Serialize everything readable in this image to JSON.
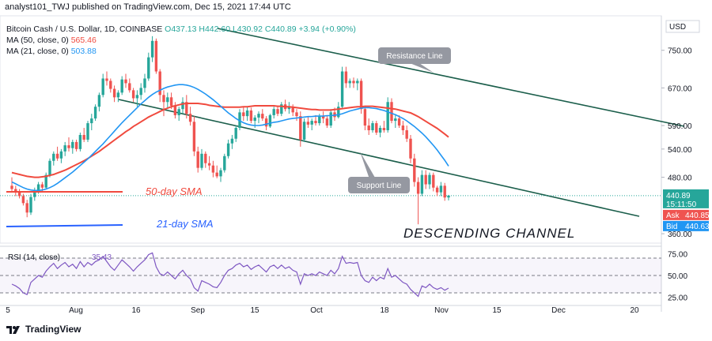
{
  "header": {
    "text": "analyst101_TWJ published on TradingView.com, Dec 15, 2021 17:44 UTC"
  },
  "legend": {
    "symbol": "Bitcoin Cash / U.S. Dollar, 1D, COINBASE",
    "ohlc": "O437.13  H442.60  L430.92  C440.89  +3.94 (+0.90%)",
    "ma50_label": "MA (50, close, 0)",
    "ma50_value": "565.46",
    "ma21_label": "MA (21, close, 0)",
    "ma21_value": "503.88"
  },
  "colors": {
    "up": "#26a69a",
    "down": "#ef5350",
    "ma50": "#f04a3e",
    "ma21": "#2196f3",
    "channel": "#1b5e4b",
    "rsi": "#7e57c2",
    "ask": "#ef5350",
    "bid": "#2196f3"
  },
  "price_axis": {
    "currency": "USD",
    "ticks": [
      "750.00",
      "670.00",
      "590.00",
      "540.00",
      "480.00",
      "360.00"
    ],
    "last": "440.89",
    "countdown": "15:11:50",
    "ask_label": "Ask",
    "ask_value": "440.85",
    "bid_label": "Bid",
    "bid_value": "440.63"
  },
  "rsi": {
    "label": "RSI (14, close)",
    "value": "35.43",
    "ticks": [
      "75.00",
      "50.00",
      "25.00"
    ]
  },
  "time_axis": [
    "5",
    "Aug",
    "16",
    "Sep",
    "15",
    "Oct",
    "18",
    "Nov",
    "15",
    "Dec",
    "20"
  ],
  "annotations": {
    "resistance": "Resistance Line",
    "support": "Support Line",
    "title": "DESCENDING CHANNEL",
    "sma50": "50-day SMA",
    "sma21": "21-day SMA"
  },
  "footer": {
    "brand": "TradingView"
  },
  "chart_data": {
    "type": "candlestick",
    "symbol": "Bitcoin Cash / U.S. Dollar",
    "interval": "1D",
    "ylim": [
      340,
      820
    ],
    "candles": [
      {
        "o": 462,
        "h": 480,
        "l": 450,
        "c": 455
      },
      {
        "o": 455,
        "h": 462,
        "l": 440,
        "c": 448
      },
      {
        "o": 448,
        "h": 455,
        "l": 435,
        "c": 440
      },
      {
        "o": 440,
        "h": 445,
        "l": 420,
        "c": 425
      },
      {
        "o": 425,
        "h": 432,
        "l": 395,
        "c": 405
      },
      {
        "o": 405,
        "h": 445,
        "l": 400,
        "c": 438
      },
      {
        "o": 438,
        "h": 458,
        "l": 430,
        "c": 452
      },
      {
        "o": 452,
        "h": 470,
        "l": 445,
        "c": 465
      },
      {
        "o": 465,
        "h": 470,
        "l": 450,
        "c": 458
      },
      {
        "o": 458,
        "h": 490,
        "l": 455,
        "c": 485
      },
      {
        "o": 485,
        "h": 520,
        "l": 480,
        "c": 515
      },
      {
        "o": 515,
        "h": 535,
        "l": 505,
        "c": 530
      },
      {
        "o": 530,
        "h": 545,
        "l": 515,
        "c": 520
      },
      {
        "o": 520,
        "h": 540,
        "l": 510,
        "c": 535
      },
      {
        "o": 535,
        "h": 555,
        "l": 525,
        "c": 548
      },
      {
        "o": 548,
        "h": 565,
        "l": 535,
        "c": 542
      },
      {
        "o": 542,
        "h": 560,
        "l": 530,
        "c": 555
      },
      {
        "o": 555,
        "h": 560,
        "l": 535,
        "c": 540
      },
      {
        "o": 540,
        "h": 575,
        "l": 535,
        "c": 570
      },
      {
        "o": 570,
        "h": 585,
        "l": 555,
        "c": 560
      },
      {
        "o": 560,
        "h": 600,
        "l": 555,
        "c": 595
      },
      {
        "o": 595,
        "h": 615,
        "l": 580,
        "c": 605
      },
      {
        "o": 605,
        "h": 635,
        "l": 600,
        "c": 630
      },
      {
        "o": 630,
        "h": 660,
        "l": 620,
        "c": 655
      },
      {
        "o": 655,
        "h": 700,
        "l": 650,
        "c": 690
      },
      {
        "o": 690,
        "h": 705,
        "l": 675,
        "c": 685
      },
      {
        "o": 685,
        "h": 690,
        "l": 660,
        "c": 668
      },
      {
        "o": 668,
        "h": 675,
        "l": 640,
        "c": 650
      },
      {
        "o": 650,
        "h": 665,
        "l": 640,
        "c": 660
      },
      {
        "o": 660,
        "h": 695,
        "l": 655,
        "c": 688
      },
      {
        "o": 688,
        "h": 700,
        "l": 670,
        "c": 680
      },
      {
        "o": 680,
        "h": 690,
        "l": 660,
        "c": 665
      },
      {
        "o": 665,
        "h": 670,
        "l": 640,
        "c": 648
      },
      {
        "o": 648,
        "h": 665,
        "l": 630,
        "c": 655
      },
      {
        "o": 655,
        "h": 680,
        "l": 645,
        "c": 670
      },
      {
        "o": 670,
        "h": 700,
        "l": 660,
        "c": 690
      },
      {
        "o": 690,
        "h": 745,
        "l": 685,
        "c": 735
      },
      {
        "o": 735,
        "h": 780,
        "l": 725,
        "c": 770
      },
      {
        "o": 770,
        "h": 775,
        "l": 700,
        "c": 705
      },
      {
        "o": 705,
        "h": 710,
        "l": 640,
        "c": 655
      },
      {
        "o": 655,
        "h": 665,
        "l": 610,
        "c": 640
      },
      {
        "o": 640,
        "h": 660,
        "l": 625,
        "c": 650
      },
      {
        "o": 650,
        "h": 660,
        "l": 625,
        "c": 632
      },
      {
        "o": 632,
        "h": 640,
        "l": 605,
        "c": 612
      },
      {
        "o": 612,
        "h": 630,
        "l": 600,
        "c": 625
      },
      {
        "o": 625,
        "h": 650,
        "l": 615,
        "c": 640
      },
      {
        "o": 640,
        "h": 655,
        "l": 605,
        "c": 615
      },
      {
        "o": 615,
        "h": 630,
        "l": 590,
        "c": 598
      },
      {
        "o": 598,
        "h": 610,
        "l": 525,
        "c": 535
      },
      {
        "o": 535,
        "h": 545,
        "l": 490,
        "c": 500
      },
      {
        "o": 500,
        "h": 540,
        "l": 495,
        "c": 530
      },
      {
        "o": 530,
        "h": 535,
        "l": 500,
        "c": 510
      },
      {
        "o": 510,
        "h": 525,
        "l": 495,
        "c": 505
      },
      {
        "o": 505,
        "h": 515,
        "l": 480,
        "c": 490
      },
      {
        "o": 490,
        "h": 505,
        "l": 478,
        "c": 482
      },
      {
        "o": 482,
        "h": 500,
        "l": 470,
        "c": 495
      },
      {
        "o": 495,
        "h": 530,
        "l": 490,
        "c": 525
      },
      {
        "o": 525,
        "h": 560,
        "l": 520,
        "c": 552
      },
      {
        "o": 552,
        "h": 570,
        "l": 540,
        "c": 562
      },
      {
        "o": 562,
        "h": 590,
        "l": 555,
        "c": 585
      },
      {
        "o": 585,
        "h": 625,
        "l": 580,
        "c": 618
      },
      {
        "o": 618,
        "h": 630,
        "l": 600,
        "c": 610
      },
      {
        "o": 610,
        "h": 630,
        "l": 600,
        "c": 622
      },
      {
        "o": 622,
        "h": 628,
        "l": 595,
        "c": 600
      },
      {
        "o": 600,
        "h": 612,
        "l": 585,
        "c": 607
      },
      {
        "o": 607,
        "h": 620,
        "l": 595,
        "c": 615
      },
      {
        "o": 615,
        "h": 625,
        "l": 600,
        "c": 605
      },
      {
        "o": 605,
        "h": 610,
        "l": 580,
        "c": 588
      },
      {
        "o": 588,
        "h": 615,
        "l": 585,
        "c": 612
      },
      {
        "o": 612,
        "h": 630,
        "l": 605,
        "c": 625
      },
      {
        "o": 625,
        "h": 632,
        "l": 610,
        "c": 615
      },
      {
        "o": 615,
        "h": 640,
        "l": 610,
        "c": 635
      },
      {
        "o": 635,
        "h": 645,
        "l": 620,
        "c": 625
      },
      {
        "o": 625,
        "h": 640,
        "l": 615,
        "c": 630
      },
      {
        "o": 630,
        "h": 635,
        "l": 610,
        "c": 618
      },
      {
        "o": 618,
        "h": 625,
        "l": 600,
        "c": 610
      },
      {
        "o": 610,
        "h": 620,
        "l": 545,
        "c": 560
      },
      {
        "o": 560,
        "h": 605,
        "l": 555,
        "c": 598
      },
      {
        "o": 598,
        "h": 610,
        "l": 585,
        "c": 592
      },
      {
        "o": 592,
        "h": 605,
        "l": 580,
        "c": 600
      },
      {
        "o": 600,
        "h": 612,
        "l": 590,
        "c": 595
      },
      {
        "o": 595,
        "h": 615,
        "l": 590,
        "c": 610
      },
      {
        "o": 610,
        "h": 620,
        "l": 595,
        "c": 605
      },
      {
        "o": 605,
        "h": 612,
        "l": 585,
        "c": 590
      },
      {
        "o": 590,
        "h": 625,
        "l": 585,
        "c": 618
      },
      {
        "o": 618,
        "h": 628,
        "l": 600,
        "c": 608
      },
      {
        "o": 608,
        "h": 640,
        "l": 605,
        "c": 630
      },
      {
        "o": 630,
        "h": 715,
        "l": 625,
        "c": 705
      },
      {
        "o": 705,
        "h": 715,
        "l": 670,
        "c": 680
      },
      {
        "o": 680,
        "h": 690,
        "l": 670,
        "c": 685
      },
      {
        "o": 685,
        "h": 692,
        "l": 670,
        "c": 680
      },
      {
        "o": 680,
        "h": 690,
        "l": 665,
        "c": 685
      },
      {
        "o": 685,
        "h": 690,
        "l": 615,
        "c": 625
      },
      {
        "o": 625,
        "h": 632,
        "l": 580,
        "c": 590
      },
      {
        "o": 590,
        "h": 605,
        "l": 570,
        "c": 580
      },
      {
        "o": 580,
        "h": 600,
        "l": 575,
        "c": 595
      },
      {
        "o": 595,
        "h": 600,
        "l": 570,
        "c": 575
      },
      {
        "o": 575,
        "h": 590,
        "l": 565,
        "c": 585
      },
      {
        "o": 585,
        "h": 600,
        "l": 575,
        "c": 580
      },
      {
        "o": 580,
        "h": 650,
        "l": 575,
        "c": 640
      },
      {
        "o": 640,
        "h": 648,
        "l": 595,
        "c": 600
      },
      {
        "o": 600,
        "h": 612,
        "l": 585,
        "c": 605
      },
      {
        "o": 605,
        "h": 612,
        "l": 585,
        "c": 590
      },
      {
        "o": 590,
        "h": 600,
        "l": 570,
        "c": 580
      },
      {
        "o": 580,
        "h": 590,
        "l": 555,
        "c": 562
      },
      {
        "o": 562,
        "h": 570,
        "l": 510,
        "c": 520
      },
      {
        "o": 520,
        "h": 530,
        "l": 460,
        "c": 470
      },
      {
        "o": 470,
        "h": 480,
        "l": 380,
        "c": 445
      },
      {
        "o": 445,
        "h": 495,
        "l": 440,
        "c": 485
      },
      {
        "o": 485,
        "h": 495,
        "l": 455,
        "c": 465
      },
      {
        "o": 465,
        "h": 490,
        "l": 455,
        "c": 485
      },
      {
        "o": 485,
        "h": 490,
        "l": 450,
        "c": 458
      },
      {
        "o": 458,
        "h": 462,
        "l": 440,
        "c": 448
      },
      {
        "o": 448,
        "h": 470,
        "l": 440,
        "c": 462
      },
      {
        "o": 462,
        "h": 468,
        "l": 430,
        "c": 437
      },
      {
        "o": 437,
        "h": 442.6,
        "l": 430.92,
        "c": 440.89
      }
    ],
    "ma50": [
      490,
      488,
      486,
      484,
      482,
      481,
      480,
      480,
      481,
      482,
      484,
      486,
      489,
      492,
      495,
      499,
      503,
      507,
      511,
      515,
      520,
      525,
      530,
      535,
      541,
      547,
      553,
      559,
      565,
      571,
      577,
      582,
      588,
      593,
      598,
      603,
      608,
      612,
      616,
      620,
      624,
      627,
      630,
      632,
      634,
      636,
      637,
      637,
      637,
      637,
      636,
      635,
      633,
      632,
      631,
      630,
      629,
      629,
      629,
      629,
      629,
      630,
      630,
      631,
      632,
      632,
      632,
      632,
      632,
      632,
      631,
      631,
      630,
      630,
      629,
      628,
      627,
      626,
      625,
      624,
      624,
      623,
      623,
      623,
      623,
      624,
      625,
      626,
      627,
      628,
      629,
      630,
      630,
      631,
      631,
      631,
      630,
      629,
      628,
      627,
      626,
      625,
      623,
      621,
      619,
      617,
      613,
      609,
      604,
      599,
      594,
      589,
      584,
      578,
      572,
      565.46
    ],
    "ma21": [
      470,
      466,
      462,
      458,
      455,
      453,
      452,
      452,
      453,
      455,
      458,
      462,
      467,
      473,
      479,
      485,
      491,
      498,
      505,
      512,
      519,
      527,
      535,
      543,
      551,
      560,
      569,
      578,
      587,
      596,
      604,
      612,
      620,
      628,
      636,
      643,
      650,
      656,
      661,
      665,
      669,
      672,
      674,
      676,
      677,
      677,
      676,
      674,
      671,
      667,
      662,
      657,
      651,
      645,
      638,
      631,
      624,
      617,
      611,
      605,
      600,
      596,
      593,
      591,
      590,
      590,
      591,
      593,
      595,
      597,
      598,
      600,
      602,
      604,
      605,
      606,
      607,
      608,
      609,
      609,
      610,
      610,
      610,
      611,
      611,
      612,
      613,
      615,
      618,
      621,
      623,
      625,
      627,
      628,
      628,
      627,
      626,
      624,
      622,
      619,
      616,
      613,
      609,
      605,
      600,
      594,
      588,
      581,
      574,
      566,
      557,
      548,
      538,
      527,
      516,
      503.88
    ],
    "rsi": [
      40,
      38,
      35,
      30,
      28,
      42,
      46,
      50,
      48,
      55,
      60,
      64,
      58,
      62,
      65,
      60,
      63,
      58,
      66,
      60,
      65,
      62,
      66,
      68,
      72,
      66,
      60,
      56,
      62,
      68,
      64,
      60,
      55,
      60,
      64,
      68,
      74,
      76,
      60,
      52,
      50,
      54,
      50,
      46,
      52,
      56,
      50,
      46,
      36,
      32,
      44,
      42,
      40,
      37,
      36,
      42,
      50,
      56,
      58,
      62,
      64,
      60,
      62,
      57,
      60,
      62,
      58,
      54,
      60,
      62,
      58,
      62,
      58,
      60,
      56,
      54,
      40,
      52,
      50,
      52,
      50,
      54,
      52,
      50,
      56,
      52,
      58,
      72,
      64,
      65,
      64,
      65,
      50,
      44,
      42,
      48,
      44,
      48,
      46,
      58,
      48,
      50,
      46,
      42,
      40,
      34,
      30,
      26,
      38,
      36,
      40,
      36,
      34,
      36,
      33,
      35.43
    ],
    "rsi_levels": [
      70,
      50,
      30
    ],
    "rsi_ylim": [
      20,
      80
    ]
  }
}
